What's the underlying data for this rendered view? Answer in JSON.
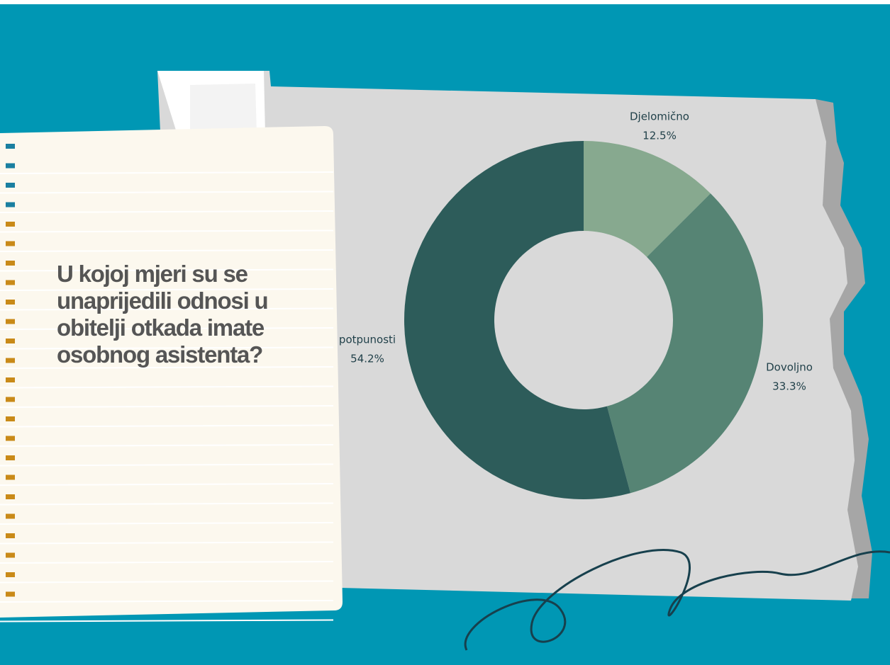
{
  "chart_data": {
    "type": "pie",
    "title": "U kojoj mjeri su se unaprijedili odnosi u obitelji otkada imate osobnog asistenta?",
    "categories": [
      "Djelomično",
      "Dovoljno",
      "potpunosti"
    ],
    "values": [
      12.5,
      33.3,
      54.2
    ],
    "value_labels": [
      "12.5%",
      "33.3%",
      "54.2%"
    ],
    "colors": [
      "#87a98f",
      "#568474",
      "#2d5c5a"
    ]
  }
}
